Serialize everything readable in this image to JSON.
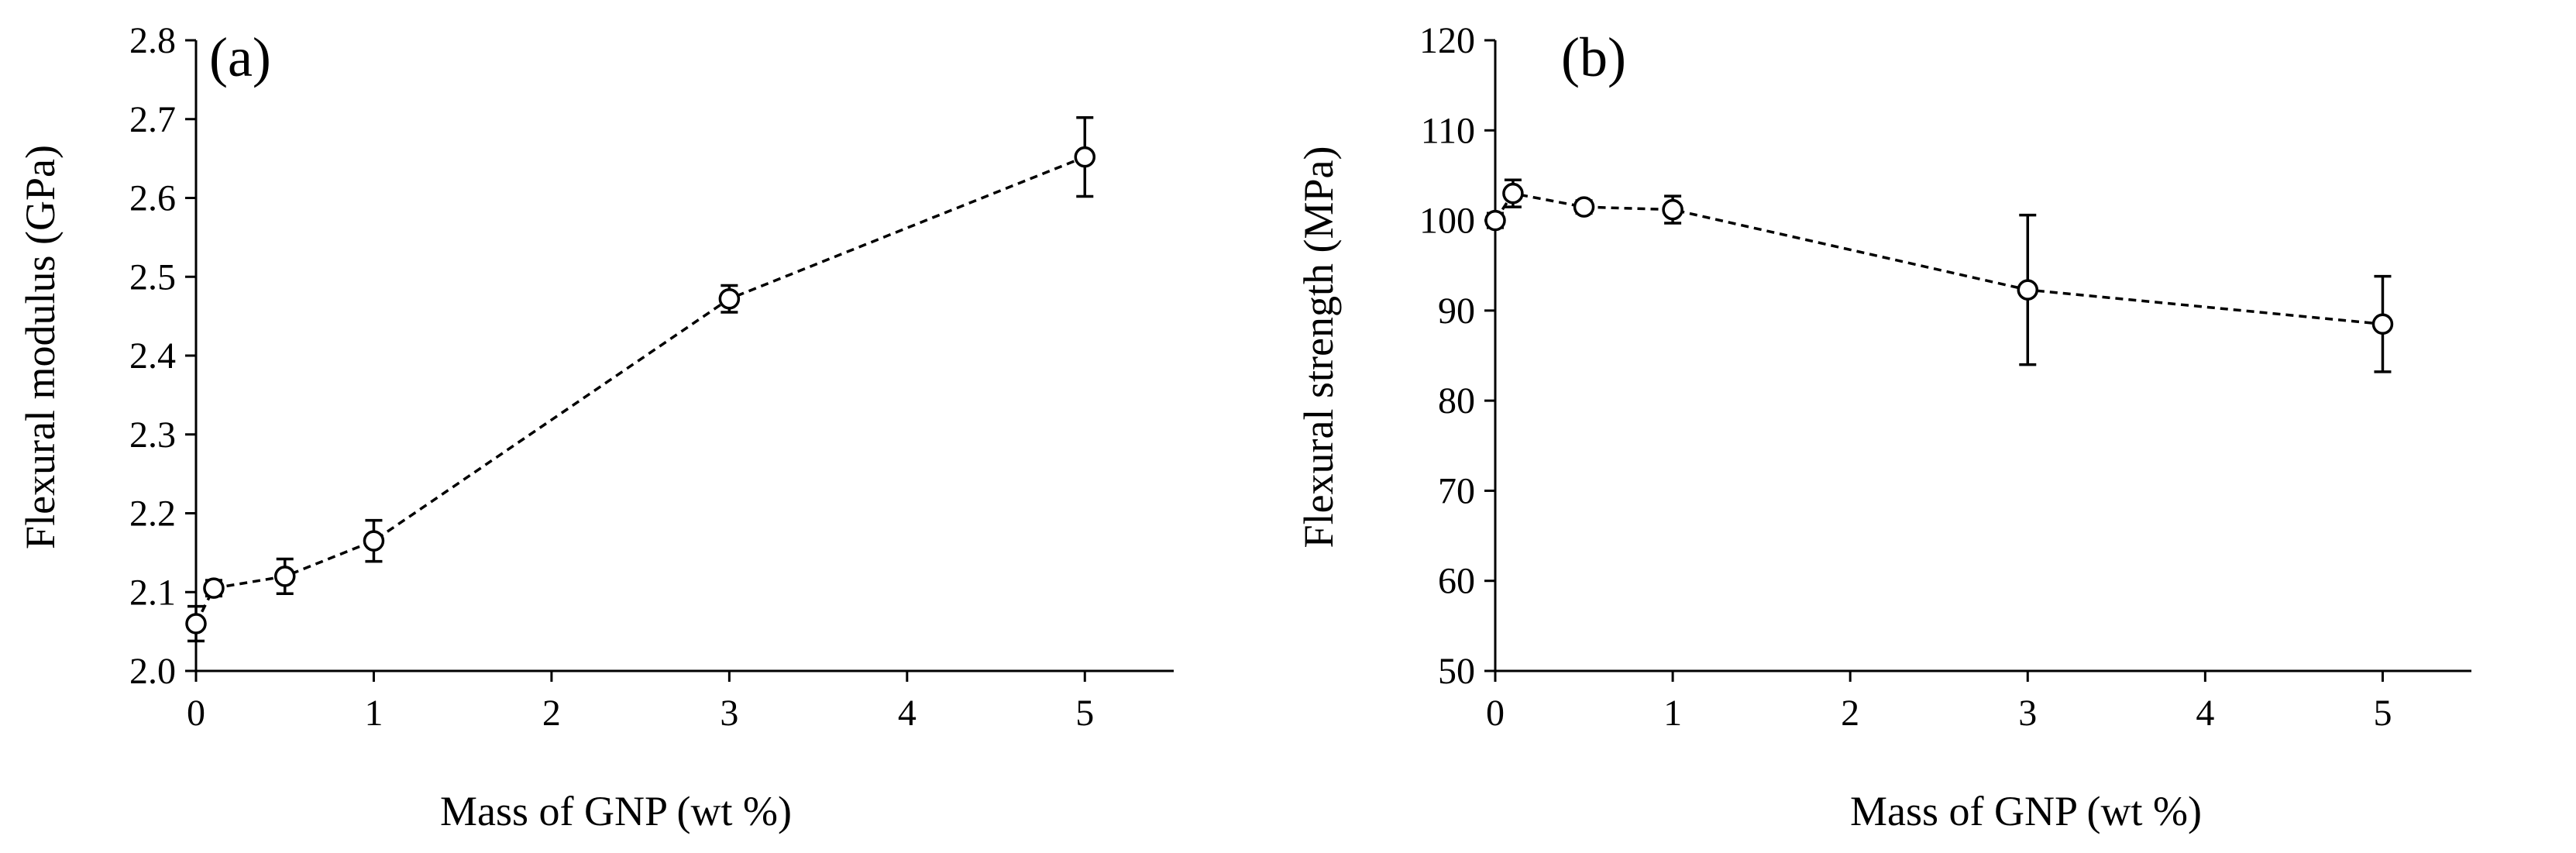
{
  "figure": {
    "colors": {
      "ink": "#000000",
      "background": "#ffffff",
      "marker_fill": "#ffffff"
    }
  },
  "chart_data": [
    {
      "id": "a",
      "type": "line",
      "panel_label": "(a)",
      "title": "",
      "xlabel": "Mass of GNP (wt %)",
      "ylabel": "Flexural modulus (GPa)",
      "xlim": [
        0,
        5.5
      ],
      "ylim": [
        2.0,
        2.8
      ],
      "xticks": [
        0,
        1,
        2,
        3,
        4,
        5
      ],
      "xtick_labels": [
        "0",
        "1",
        "2",
        "3",
        "4",
        "5"
      ],
      "yticks": [
        2.0,
        2.1,
        2.2,
        2.3,
        2.4,
        2.5,
        2.6,
        2.7,
        2.8
      ],
      "ytick_labels": [
        "2.0",
        "2.1",
        "2.2",
        "2.3",
        "2.4",
        "2.5",
        "2.6",
        "2.7",
        "2.8"
      ],
      "grid": false,
      "series": [
        {
          "name": "Flexural modulus",
          "line_style": "dashed",
          "marker": "open-circle",
          "x": [
            0,
            0.1,
            0.5,
            1,
            3,
            5
          ],
          "y": [
            2.06,
            2.105,
            2.12,
            2.165,
            2.472,
            2.652
          ],
          "error": [
            0.022,
            0.01,
            0.022,
            0.026,
            0.017,
            0.05
          ]
        }
      ]
    },
    {
      "id": "b",
      "type": "line",
      "panel_label": "(b)",
      "title": "",
      "xlabel": "Mass of GNP (wt %)",
      "ylabel": "Flexural strength (MPa)",
      "xlim": [
        0,
        5.5
      ],
      "ylim": [
        50,
        120
      ],
      "xticks": [
        0,
        1,
        2,
        3,
        4,
        5
      ],
      "xtick_labels": [
        "0",
        "1",
        "2",
        "3",
        "4",
        "5"
      ],
      "yticks": [
        50,
        60,
        70,
        80,
        90,
        100,
        110,
        120
      ],
      "ytick_labels": [
        "50",
        "60",
        "70",
        "80",
        "90",
        "100",
        "110",
        "120"
      ],
      "grid": false,
      "series": [
        {
          "name": "Flexural strength",
          "line_style": "dashed",
          "marker": "open-circle",
          "x": [
            0,
            0.1,
            0.5,
            1,
            3,
            5
          ],
          "y": [
            100,
            103,
            101.5,
            101.2,
            92.3,
            88.5
          ],
          "error": [
            0.8,
            1.5,
            0.7,
            1.5,
            8.3,
            5.3
          ]
        }
      ]
    }
  ]
}
